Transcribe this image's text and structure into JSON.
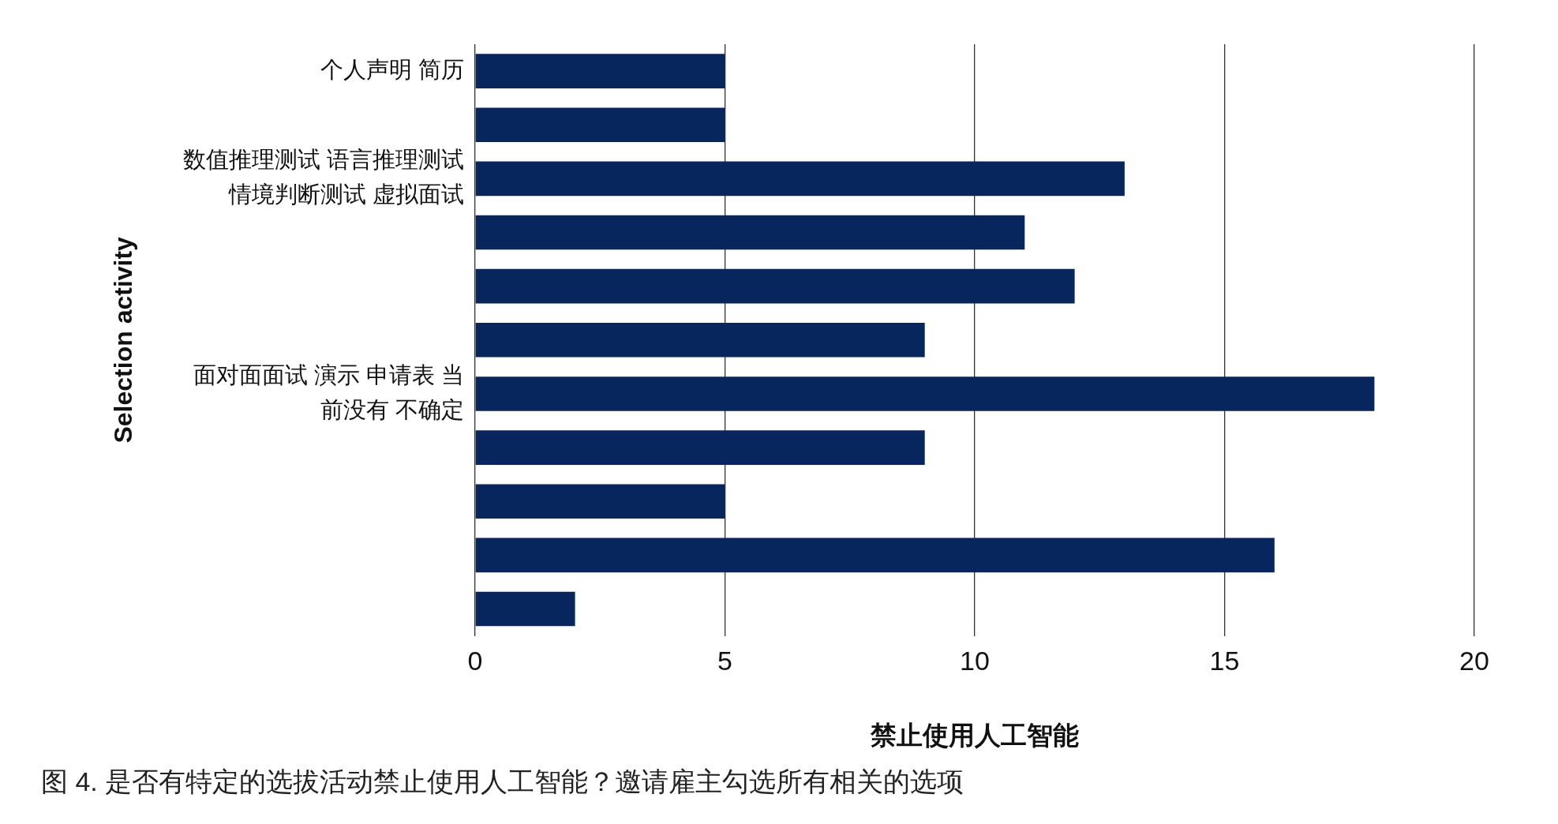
{
  "chart_data": {
    "type": "bar",
    "orientation": "horizontal",
    "xlabel": "禁止使用人工智能",
    "ylabel": "Selection activity",
    "categories": [
      "个人声明 简历",
      null,
      "数值推理测试 语言推理测试情境判断测试 虚拟面试",
      null,
      null,
      null,
      "面对面面试 演示 申请表 当前没有 不确定",
      null,
      null,
      null,
      null
    ],
    "values": [
      5,
      5,
      13,
      11,
      12,
      9,
      18,
      9,
      5,
      16,
      2
    ],
    "color": "#08265e",
    "xlim": [
      0,
      20
    ],
    "xticks": [
      0,
      5,
      10,
      15,
      20
    ],
    "grid": "x",
    "annotations": [
      "图 4. 是否有特定的选拔活动禁止使用人工智能？邀请雇主勾选所有相关的选项"
    ]
  }
}
